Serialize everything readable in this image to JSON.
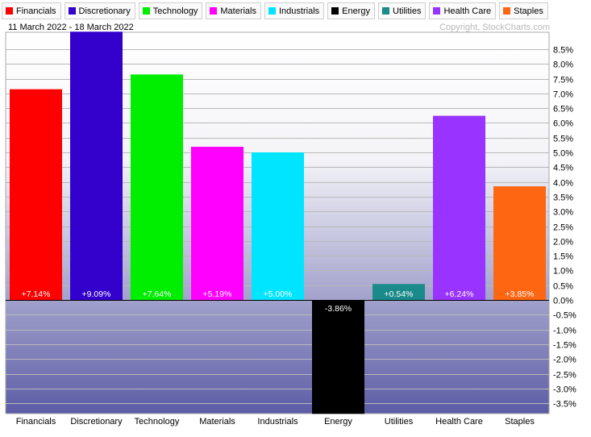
{
  "legend": [
    {
      "label": "Financials",
      "color": "#ff0000"
    },
    {
      "label": "Discretionary",
      "color": "#3300cc"
    },
    {
      "label": "Technology",
      "color": "#00ee00"
    },
    {
      "label": "Materials",
      "color": "#ff00ff"
    },
    {
      "label": "Industrials",
      "color": "#00e5ff"
    },
    {
      "label": "Energy",
      "color": "#000000"
    },
    {
      "label": "Utilities",
      "color": "#1a8a8a"
    },
    {
      "label": "Health Care",
      "color": "#9933ff"
    },
    {
      "label": "Staples",
      "color": "#ff6611"
    }
  ],
  "date_range": "11 March 2022 - 18 March 2022",
  "copyright": "Copyright, StockCharts.com",
  "chart_data": {
    "type": "bar",
    "categories": [
      "Financials",
      "Discretionary",
      "Technology",
      "Materials",
      "Industrials",
      "Energy",
      "Utilities",
      "Health Care",
      "Staples"
    ],
    "values": [
      7.14,
      9.09,
      7.64,
      5.19,
      5.0,
      -3.86,
      0.54,
      6.24,
      3.85
    ],
    "value_labels": [
      "+7.14%",
      "+9.09%",
      "+7.64%",
      "+5.19%",
      "+5.00%",
      "-3.86%",
      "+0.54%",
      "+6.24%",
      "+3.85%"
    ],
    "colors": [
      "#ff0000",
      "#3300cc",
      "#00ee00",
      "#ff00ff",
      "#00e5ff",
      "#000000",
      "#1a8a8a",
      "#9933ff",
      "#ff6611"
    ],
    "ylim": [
      -3.86,
      9.0
    ],
    "yticks": [
      8.5,
      8.0,
      7.5,
      7.0,
      6.5,
      6.0,
      5.5,
      5.0,
      4.5,
      4.0,
      3.5,
      3.0,
      2.5,
      2.0,
      1.5,
      1.0,
      0.5,
      0.0,
      -0.5,
      -1.0,
      -1.5,
      -2.0,
      -2.5,
      -3.0,
      -3.5
    ],
    "ytick_labels": [
      "8.5%",
      "8.0%",
      "7.5%",
      "7.0%",
      "6.5%",
      "6.0%",
      "5.5%",
      "5.0%",
      "4.5%",
      "4.0%",
      "3.5%",
      "3.0%",
      "2.5%",
      "2.0%",
      "1.5%",
      "1.0%",
      "0.5%",
      "0.0%",
      "-0.5%",
      "-1.0%",
      "-1.5%",
      "-2.0%",
      "-2.5%",
      "-3.0%",
      "-3.5%"
    ],
    "y_axis_side": "right",
    "grid": true,
    "legend_placement": "top",
    "title": "",
    "xlabel": "",
    "ylabel": ""
  }
}
